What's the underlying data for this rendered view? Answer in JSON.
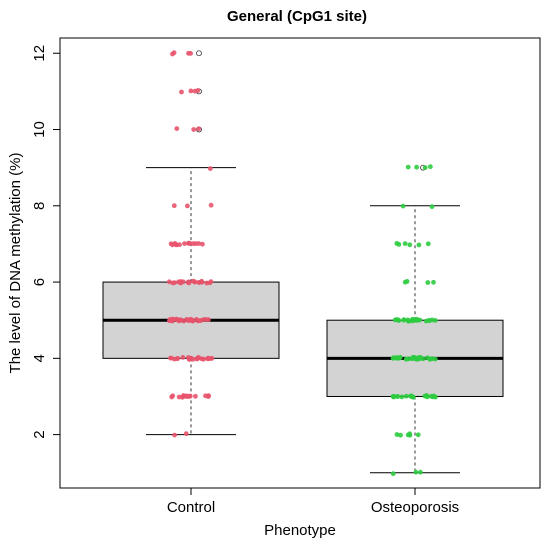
{
  "chart_data": {
    "type": "boxplot",
    "title": "General (CpG1 site)",
    "xlabel": "Phenotype",
    "ylabel": "The level of DNA methylation (%)",
    "categories": [
      "Control",
      "Osteoporosis"
    ],
    "yticks": [
      "2",
      "4",
      "6",
      "8",
      "10",
      "12"
    ],
    "ylim": [
      0.6,
      12.4
    ],
    "grid": false,
    "boxes": [
      {
        "name": "Control",
        "color": "#e8536b",
        "whisker_low": 2,
        "q1": 4,
        "median": 5,
        "q3": 6,
        "whisker_high": 9,
        "outliers": [
          10,
          11,
          12
        ],
        "points": [
          {
            "y": 12,
            "n": 4
          },
          {
            "y": 11,
            "n": 4
          },
          {
            "y": 10,
            "n": 3
          },
          {
            "y": 9,
            "n": 1
          },
          {
            "y": 8,
            "n": 3
          },
          {
            "y": 7,
            "n": 14
          },
          {
            "y": 6,
            "n": 22
          },
          {
            "y": 5,
            "n": 30
          },
          {
            "y": 4,
            "n": 24
          },
          {
            "y": 3,
            "n": 14
          },
          {
            "y": 2,
            "n": 2
          }
        ]
      },
      {
        "name": "Osteoporosis",
        "color": "#2ecc40",
        "whisker_low": 1,
        "q1": 3,
        "median": 4,
        "q3": 5,
        "whisker_high": 8,
        "outliers": [
          9
        ],
        "points": [
          {
            "y": 9,
            "n": 4
          },
          {
            "y": 8,
            "n": 2
          },
          {
            "y": 7,
            "n": 6
          },
          {
            "y": 6,
            "n": 4
          },
          {
            "y": 5,
            "n": 22
          },
          {
            "y": 4,
            "n": 36
          },
          {
            "y": 3,
            "n": 20
          },
          {
            "y": 2,
            "n": 6
          },
          {
            "y": 1,
            "n": 3
          }
        ]
      }
    ],
    "box_fill": "#d3d3d3"
  }
}
